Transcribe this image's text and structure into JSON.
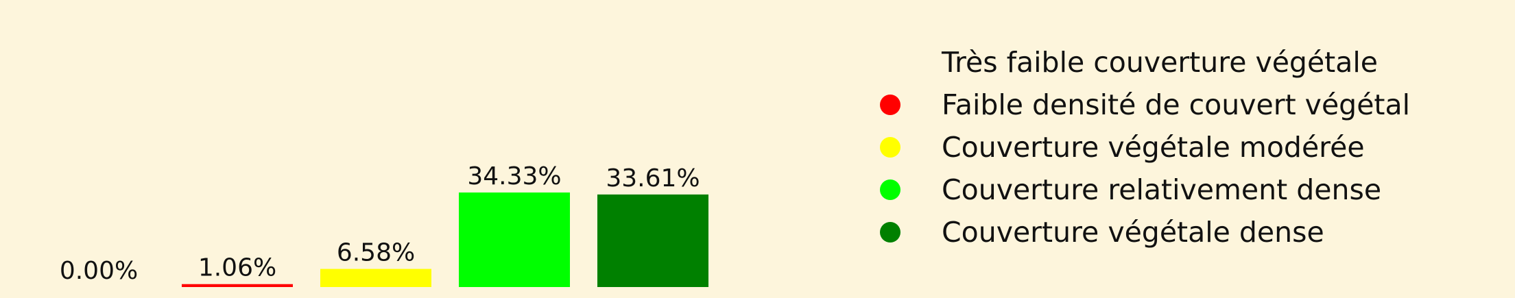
{
  "chart_data": {
    "type": "bar",
    "categories": [
      "Très faible couverture végétale",
      "Faible densité de couvert végétal",
      "Couverture végétale modérée",
      "Couverture relativement dense",
      "Couverture végétale dense"
    ],
    "values": [
      0.0,
      1.06,
      6.58,
      34.33,
      33.61
    ],
    "data_labels": [
      "0.00%",
      "1.06%",
      "6.58%",
      "34.33%",
      "33.61%"
    ],
    "colors": [
      "#fdf5dc",
      "#ff0000",
      "#ffff00",
      "#00ff00",
      "#008000"
    ],
    "legend": {
      "placement": "right",
      "entries": [
        "Très faible couverture végétale",
        "Faible densité de couvert végétal",
        "Couverture végétale modérée",
        "Couverture relativement dense",
        "Couverture végétale dense"
      ],
      "marker": "circle"
    },
    "ylim": [
      0,
      34.33
    ],
    "grid": false,
    "axes_visible": false
  },
  "background_color": "#fdf5dc"
}
